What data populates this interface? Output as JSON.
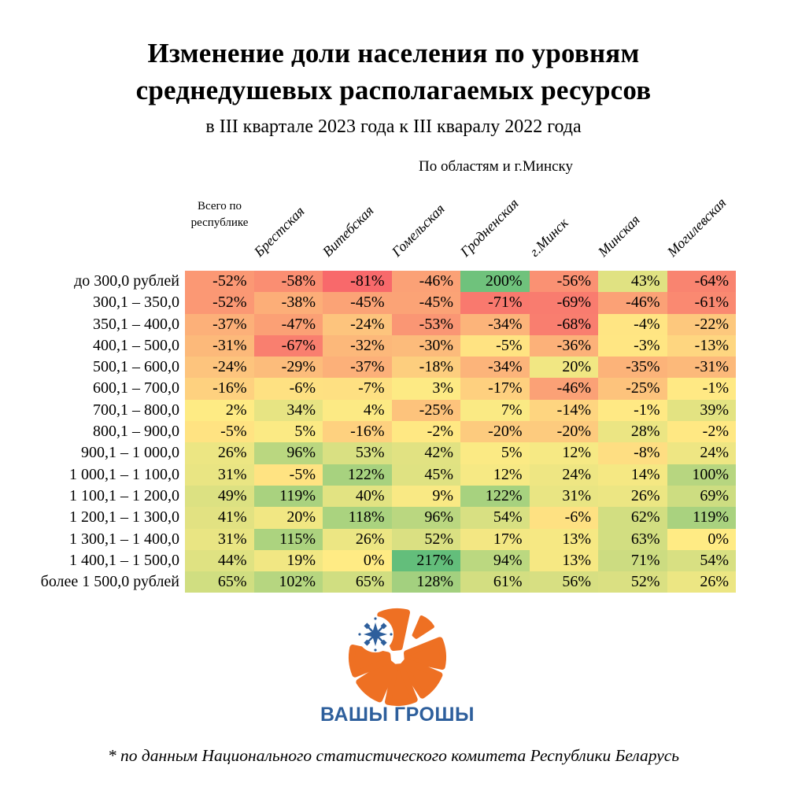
{
  "title": {
    "line1": "Изменение доли населения по уровням",
    "line2": "среднедушевых располагаемых ресурсов",
    "subtitle": "в III квартале 2023 года к III кваралу 2022 года"
  },
  "caption": "По областям и г.Минску",
  "chart_data": {
    "type": "heatmap",
    "title": "Изменение доли населения по уровням среднедушевых располагаемых ресурсов",
    "subtitle": "в III квартале 2023 года к III кваралу 2022 года",
    "columns_caption": "По областям и г.Минску",
    "unit": "%",
    "columns": [
      "Всего по республике",
      "Брестская",
      "Витебская",
      "Гомельская",
      "Гродненская",
      "г.Минск",
      "Минская",
      "Могилевская"
    ],
    "rows": [
      "до 300,0 рублей",
      "300,1 – 350,0",
      "350,1 – 400,0",
      "400,1 – 500,0",
      "500,1 – 600,0",
      "600,1 – 700,0",
      "700,1 – 800,0",
      "800,1 – 900,0",
      "900,1 – 1 000,0",
      "1 000,1 – 1 100,0",
      "1 100,1 – 1 200,0",
      "1 200,1 – 1 300,0",
      "1 300,1 – 1 400,0",
      "1 400,1 – 1 500,0",
      "более 1 500,0 рублей"
    ],
    "values": [
      [
        -52,
        -58,
        -81,
        -46,
        200,
        -56,
        43,
        -64
      ],
      [
        -52,
        -38,
        -45,
        -45,
        -71,
        -69,
        -46,
        -61
      ],
      [
        -37,
        -47,
        -24,
        -53,
        -34,
        -68,
        -4,
        -22
      ],
      [
        -31,
        -67,
        -32,
        -30,
        -5,
        -36,
        -3,
        -13
      ],
      [
        -24,
        -29,
        -37,
        -18,
        -34,
        20,
        -35,
        -31
      ],
      [
        -16,
        -6,
        -7,
        3,
        -17,
        -46,
        -25,
        -1
      ],
      [
        2,
        34,
        4,
        -25,
        7,
        -14,
        -1,
        39
      ],
      [
        -5,
        5,
        -16,
        -2,
        -20,
        -20,
        28,
        -2
      ],
      [
        26,
        96,
        53,
        42,
        5,
        12,
        -8,
        24
      ],
      [
        31,
        -5,
        122,
        45,
        12,
        24,
        14,
        100
      ],
      [
        49,
        119,
        40,
        9,
        122,
        31,
        26,
        69
      ],
      [
        41,
        20,
        118,
        96,
        54,
        -6,
        62,
        119
      ],
      [
        31,
        115,
        26,
        52,
        17,
        13,
        63,
        0
      ],
      [
        44,
        19,
        0,
        217,
        94,
        13,
        71,
        54
      ],
      [
        65,
        102,
        65,
        128,
        61,
        56,
        52,
        26
      ]
    ],
    "colorscale": {
      "min": {
        "value": -81,
        "color": "#F8696B"
      },
      "mid": {
        "value": 0,
        "color": "#FFEB84"
      },
      "max": {
        "value": 217,
        "color": "#63BE7B"
      }
    },
    "legend": "none",
    "grid": "off"
  },
  "logo": {
    "text": "ВАШЫ ГРОШЫ",
    "orange": "#EE7023",
    "blue": "#2E5F9C"
  },
  "footnote": "* по данным Национального статистического комитета Республики Беларусь"
}
